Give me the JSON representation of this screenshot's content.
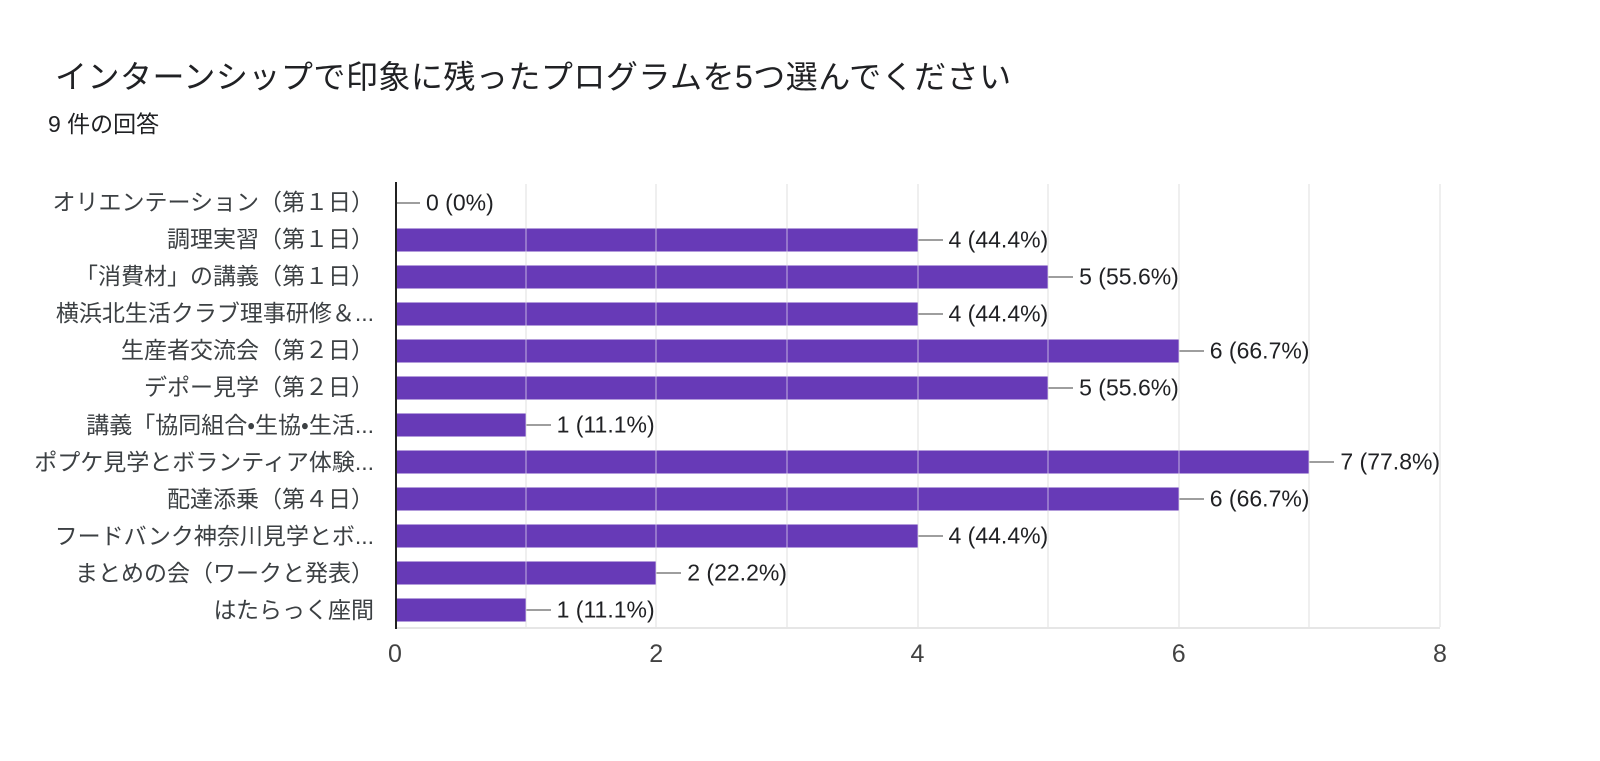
{
  "header": {
    "title": "インターンシップで印象に残ったプログラムを5つ選んでください",
    "subtitle": "9 件の回答"
  },
  "chart_data": {
    "type": "bar",
    "orientation": "horizontal",
    "title": "インターンシップで印象に残ったプログラムを5つ選んでください",
    "subtitle": "9 件の回答",
    "total_responses": 9,
    "categories": [
      "オリエンテーション（第１日）",
      "調理実習（第１日）",
      "「消費材」の講義（第１日）",
      "横浜北生活クラブ理事研修＆...",
      "生産者交流会（第２日）",
      "デポー見学（第２日）",
      "講義「協同組合・生協・生活...",
      "ポプケ見学とボランティア体験...",
      "配達添乗（第４日）",
      "フードバンク神奈川見学とボ...",
      "まとめの会（ワークと発表）",
      "はたらっく座間"
    ],
    "values": [
      0,
      4,
      5,
      4,
      6,
      5,
      1,
      7,
      6,
      4,
      2,
      1
    ],
    "value_labels": [
      "0 (0%)",
      "4 (44.4%)",
      "5 (55.6%)",
      "4 (44.4%)",
      "6 (66.7%)",
      "5 (55.6%)",
      "1 (11.1%)",
      "7 (77.8%)",
      "6 (66.7%)",
      "4 (44.4%)",
      "2 (22.2%)",
      "1 (11.1%)"
    ],
    "percentages": [
      0,
      44.4,
      55.6,
      44.4,
      66.7,
      55.6,
      11.1,
      77.8,
      66.7,
      44.4,
      22.2,
      11.1
    ],
    "xlim": [
      0,
      8
    ],
    "x_ticks": [
      0,
      2,
      4,
      6,
      8
    ],
    "grid": true,
    "minor_grid_every": 1,
    "legend": "none",
    "colors": {
      "bar": "#673ab7",
      "axis": "#212121",
      "gridline": "#e9e9e9",
      "category_label": "#3c4043",
      "value_label": "#202124",
      "tick_label": "#424242",
      "stub": "#9e9e9e",
      "background": "#ffffff"
    }
  }
}
